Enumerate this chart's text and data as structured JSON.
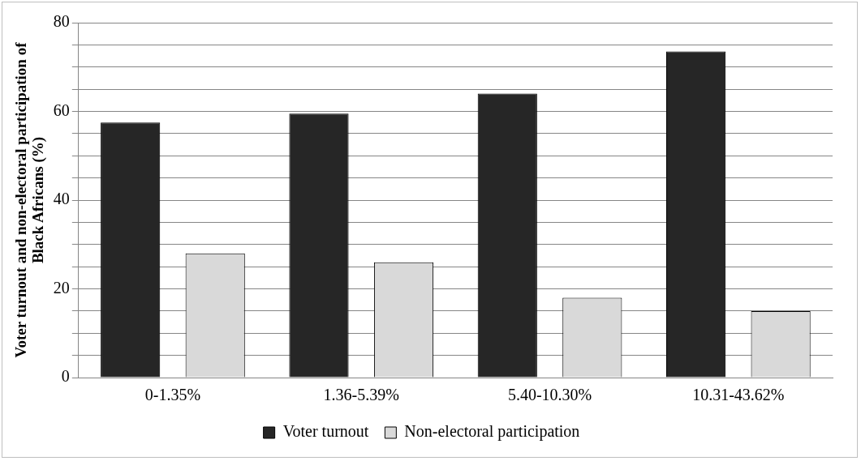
{
  "chart_data": {
    "type": "bar",
    "ylabel": "Voter turnout and non-electoral participation of Black Africans (%)",
    "categories": [
      "0-1.35%",
      "1.36-5.39%",
      "5.40-10.30%",
      "10.31-43.62%"
    ],
    "series": [
      {
        "name": "Voter turnout",
        "color": "#262626",
        "values": [
          57.5,
          59.5,
          64,
          73.5
        ]
      },
      {
        "name": "Non-electoral participation",
        "color": "#d9d9d9",
        "values": [
          28,
          26,
          18,
          15
        ]
      }
    ],
    "ylim": [
      0,
      80
    ],
    "yticks": [
      0,
      {
        "value": 5,
        "label": null
      },
      {
        "value": 10,
        "label": null
      },
      {
        "value": 15,
        "label": null
      },
      20,
      {
        "value": 25,
        "label": null
      },
      {
        "value": 30,
        "label": null
      },
      {
        "value": 35,
        "label": null
      },
      40,
      {
        "value": 45,
        "label": null
      },
      {
        "value": 50,
        "label": null
      },
      {
        "value": 55,
        "label": null
      },
      60,
      {
        "value": 65,
        "label": null
      },
      {
        "value": 70,
        "label": null
      },
      {
        "value": 75,
        "label": null
      },
      80
    ],
    "grid": "y",
    "legend": "bottom"
  }
}
